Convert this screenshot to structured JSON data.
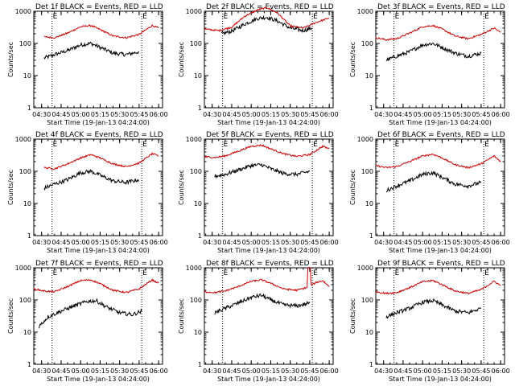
{
  "chart_data": [
    {
      "type": "line",
      "title": "Det 1f BLACK = Events, RED = LLD",
      "xlabel": "Start Time (19-Jan-13 04:24:00)",
      "ylabel": "Counts/sec",
      "yscale": "log",
      "ylim": [
        1,
        1000
      ],
      "xlim": [
        "04:24",
        "06:03"
      ],
      "x_tick_labels": [
        "04:30",
        "04:45",
        "05:00",
        "05:15",
        "05:30",
        "05:45",
        "06:00"
      ],
      "y_tick_labels": [
        "1",
        "10",
        "100",
        "1000"
      ],
      "vlines": [
        "04:38",
        "05:47"
      ],
      "markers": [
        "E",
        "E"
      ],
      "grid": false,
      "series": [
        {
          "name": "Events",
          "color": "#000000",
          "x": [
            "04:32",
            "04:40",
            "04:50",
            "05:00",
            "05:08",
            "05:15",
            "05:25",
            "05:35",
            "05:45"
          ],
          "values": [
            35,
            45,
            60,
            90,
            100,
            75,
            50,
            45,
            55
          ]
        },
        {
          "name": "LLD",
          "color": "#cc0000",
          "x": [
            "04:32",
            "04:40",
            "04:50",
            "05:00",
            "05:08",
            "05:15",
            "05:25",
            "05:35",
            "05:45",
            "05:55",
            "06:00"
          ],
          "values": [
            160,
            150,
            210,
            330,
            360,
            270,
            170,
            150,
            190,
            360,
            300
          ]
        }
      ]
    },
    {
      "type": "line",
      "title": "Det 2f BLACK = Events, RED = LLD",
      "xlabel": "Start Time (19-Jan-13 04:24:00)",
      "ylabel": "Counts/sec",
      "yscale": "log",
      "ylim": [
        1,
        1000
      ],
      "xlim": [
        "04:24",
        "06:03"
      ],
      "x_tick_labels": [
        "04:30",
        "04:45",
        "05:00",
        "05:15",
        "05:30",
        "05:45",
        "06:00"
      ],
      "y_tick_labels": [
        "1",
        "10",
        "100",
        "1000"
      ],
      "vlines": [
        "04:38",
        "05:47"
      ],
      "markers": [
        "E",
        "E"
      ],
      "grid": false,
      "series": [
        {
          "name": "Events",
          "color": "#000000",
          "x": [
            "04:37",
            "04:45",
            "04:55",
            "05:05",
            "05:12",
            "05:20",
            "05:30",
            "05:40",
            "05:47"
          ],
          "values": [
            200,
            240,
            400,
            600,
            650,
            500,
            300,
            250,
            300
          ]
        },
        {
          "name": "LLD",
          "color": "#cc0000",
          "x": [
            "04:24",
            "04:35",
            "04:45",
            "04:55",
            "05:05",
            "05:12",
            "05:20",
            "05:30",
            "05:40",
            "05:50",
            "06:00"
          ],
          "values": [
            280,
            250,
            320,
            700,
            1100,
            1300,
            900,
            350,
            300,
            450,
            620
          ]
        }
      ]
    },
    {
      "type": "line",
      "title": "Det 3f BLACK = Events, RED = LLD",
      "xlabel": "Start Time (19-Jan-13 04:24:00)",
      "ylabel": "Counts/sec",
      "yscale": "log",
      "ylim": [
        1,
        1000
      ],
      "xlim": [
        "04:24",
        "06:03"
      ],
      "x_tick_labels": [
        "04:30",
        "04:45",
        "05:00",
        "05:15",
        "05:30",
        "05:45",
        "06:00"
      ],
      "y_tick_labels": [
        "1",
        "10",
        "100",
        "1000"
      ],
      "vlines": [
        "04:38",
        "05:47"
      ],
      "markers": [
        "E",
        "E"
      ],
      "grid": false,
      "series": [
        {
          "name": "Events",
          "color": "#000000",
          "x": [
            "04:32",
            "04:40",
            "04:50",
            "05:00",
            "05:08",
            "05:15",
            "05:25",
            "05:35",
            "05:45"
          ],
          "values": [
            30,
            40,
            55,
            90,
            100,
            75,
            50,
            40,
            50
          ]
        },
        {
          "name": "LLD",
          "color": "#cc0000",
          "x": [
            "04:24",
            "04:32",
            "04:40",
            "04:50",
            "05:00",
            "05:08",
            "05:15",
            "05:25",
            "05:35",
            "05:45",
            "05:55",
            "06:00"
          ],
          "values": [
            150,
            130,
            140,
            210,
            330,
            360,
            280,
            170,
            140,
            190,
            300,
            220
          ]
        }
      ]
    },
    {
      "type": "line",
      "title": "Det 4f BLACK = Events, RED = LLD",
      "xlabel": "Start Time (19-Jan-13 04:24:00)",
      "ylabel": "Counts/sec",
      "yscale": "log",
      "ylim": [
        1,
        1000
      ],
      "xlim": [
        "04:24",
        "06:03"
      ],
      "x_tick_labels": [
        "04:30",
        "04:45",
        "05:00",
        "05:15",
        "05:30",
        "05:45",
        "06:00"
      ],
      "y_tick_labels": [
        "1",
        "10",
        "100",
        "1000"
      ],
      "vlines": [
        "04:38",
        "05:47"
      ],
      "markers": [
        "E",
        "E"
      ],
      "grid": false,
      "series": [
        {
          "name": "Events",
          "color": "#000000",
          "x": [
            "04:32",
            "04:40",
            "04:50",
            "05:00",
            "05:08",
            "05:15",
            "05:25",
            "05:35",
            "05:45"
          ],
          "values": [
            30,
            40,
            55,
            90,
            100,
            75,
            50,
            45,
            55
          ]
        },
        {
          "name": "LLD",
          "color": "#cc0000",
          "x": [
            "04:32",
            "04:40",
            "04:50",
            "05:00",
            "05:08",
            "05:15",
            "05:25",
            "05:35",
            "05:45",
            "05:55",
            "06:00"
          ],
          "values": [
            130,
            120,
            170,
            260,
            330,
            260,
            170,
            140,
            180,
            350,
            300
          ]
        }
      ]
    },
    {
      "type": "line",
      "title": "Det 5f BLACK = Events, RED = LLD",
      "xlabel": "Start Time (19-Jan-13 04:24:00)",
      "ylabel": "Counts/sec",
      "yscale": "log",
      "ylim": [
        1,
        1000
      ],
      "xlim": [
        "04:24",
        "06:03"
      ],
      "x_tick_labels": [
        "04:30",
        "04:45",
        "05:00",
        "05:15",
        "05:30",
        "05:45",
        "06:00"
      ],
      "y_tick_labels": [
        "1",
        "10",
        "100",
        "1000"
      ],
      "vlines": [
        "04:38",
        "05:47"
      ],
      "markers": [
        "E",
        "E"
      ],
      "grid": false,
      "series": [
        {
          "name": "Events",
          "color": "#000000",
          "x": [
            "04:32",
            "04:40",
            "04:50",
            "05:00",
            "05:08",
            "05:15",
            "05:25",
            "05:35",
            "05:45"
          ],
          "values": [
            70,
            80,
            110,
            150,
            160,
            120,
            85,
            80,
            100
          ]
        },
        {
          "name": "LLD",
          "color": "#cc0000",
          "x": [
            "04:24",
            "04:32",
            "04:40",
            "04:50",
            "05:00",
            "05:08",
            "05:15",
            "05:25",
            "05:35",
            "05:45",
            "05:55",
            "06:00"
          ],
          "values": [
            280,
            270,
            300,
            420,
            600,
            650,
            500,
            350,
            290,
            330,
            600,
            500
          ]
        }
      ]
    },
    {
      "type": "line",
      "title": "Det 6f BLACK = Events, RED = LLD",
      "xlabel": "Start Time (19-Jan-13 04:24:00)",
      "ylabel": "Counts/sec",
      "yscale": "log",
      "ylim": [
        1,
        1000
      ],
      "xlim": [
        "04:24",
        "06:03"
      ],
      "x_tick_labels": [
        "04:30",
        "04:45",
        "05:00",
        "05:15",
        "05:30",
        "05:45",
        "06:00"
      ],
      "y_tick_labels": [
        "1",
        "10",
        "100",
        "1000"
      ],
      "vlines": [
        "04:38",
        "05:47"
      ],
      "markers": [
        "E",
        "E"
      ],
      "grid": false,
      "series": [
        {
          "name": "Events",
          "color": "#000000",
          "x": [
            "04:32",
            "04:40",
            "04:50",
            "05:00",
            "05:08",
            "05:15",
            "05:25",
            "05:35",
            "05:45"
          ],
          "values": [
            25,
            35,
            50,
            80,
            90,
            65,
            40,
            35,
            45
          ]
        },
        {
          "name": "LLD",
          "color": "#cc0000",
          "x": [
            "04:24",
            "04:32",
            "04:40",
            "04:50",
            "05:00",
            "05:08",
            "05:15",
            "05:25",
            "05:35",
            "05:45",
            "05:55",
            "06:00"
          ],
          "values": [
            150,
            130,
            140,
            200,
            300,
            340,
            260,
            160,
            130,
            170,
            300,
            200
          ]
        }
      ]
    },
    {
      "type": "line",
      "title": "Det 7f BLACK = Events, RED = LLD",
      "xlabel": "Start Time (19-Jan-13 04:24:00)",
      "ylabel": "Counts/sec",
      "yscale": "log",
      "ylim": [
        1,
        1000
      ],
      "xlim": [
        "04:24",
        "06:03"
      ],
      "x_tick_labels": [
        "04:30",
        "04:45",
        "05:00",
        "05:15",
        "05:30",
        "05:45",
        "06:00"
      ],
      "y_tick_labels": [
        "1",
        "10",
        "100",
        "1000"
      ],
      "vlines": [
        "04:38",
        "05:47"
      ],
      "markers": [
        "E",
        "E"
      ],
      "grid": false,
      "series": [
        {
          "name": "Events",
          "color": "#000000",
          "x": [
            "04:28",
            "04:35",
            "04:45",
            "04:55",
            "05:05",
            "05:12",
            "05:20",
            "05:30",
            "05:40",
            "05:47"
          ],
          "values": [
            15,
            30,
            45,
            65,
            90,
            95,
            60,
            40,
            35,
            45
          ]
        },
        {
          "name": "LLD",
          "color": "#cc0000",
          "x": [
            "04:24",
            "04:32",
            "04:40",
            "04:50",
            "05:00",
            "05:08",
            "05:15",
            "05:25",
            "05:35",
            "05:45",
            "05:55",
            "06:00"
          ],
          "values": [
            220,
            190,
            180,
            260,
            400,
            420,
            320,
            200,
            170,
            220,
            420,
            330
          ]
        }
      ]
    },
    {
      "type": "line",
      "title": "Det 8f BLACK = Events, RED = LLD",
      "xlabel": "Start Time (19-Jan-13 04:24:00)",
      "ylabel": "Counts/sec",
      "yscale": "log",
      "ylim": [
        1,
        1000
      ],
      "xlim": [
        "04:24",
        "06:03"
      ],
      "x_tick_labels": [
        "04:30",
        "04:45",
        "05:00",
        "05:15",
        "05:30",
        "05:45",
        "06:00"
      ],
      "y_tick_labels": [
        "1",
        "10",
        "100",
        "1000"
      ],
      "vlines": [
        "04:38",
        "05:47"
      ],
      "markers": [
        "E",
        "E"
      ],
      "grid": false,
      "series": [
        {
          "name": "Events",
          "color": "#000000",
          "x": [
            "04:32",
            "04:40",
            "04:50",
            "05:00",
            "05:08",
            "05:15",
            "05:25",
            "05:35",
            "05:45"
          ],
          "values": [
            40,
            55,
            80,
            120,
            140,
            100,
            70,
            65,
            80
          ]
        },
        {
          "name": "LLD",
          "color": "#cc0000",
          "x": [
            "04:24",
            "04:32",
            "04:40",
            "04:50",
            "05:00",
            "05:08",
            "05:15",
            "05:25",
            "05:35",
            "05:42",
            "05:45",
            "05:47",
            "05:50",
            "05:55",
            "06:00"
          ],
          "values": [
            180,
            170,
            190,
            260,
            380,
            420,
            330,
            220,
            200,
            240,
            1000,
            300,
            350,
            400,
            260
          ]
        }
      ]
    },
    {
      "type": "line",
      "title": "Det 9f BLACK = Events, RED = LLD",
      "xlabel": "Start Time (19-Jan-13 04:24:00)",
      "ylabel": "Counts/sec",
      "yscale": "log",
      "ylim": [
        1,
        1000
      ],
      "xlim": [
        "04:24",
        "06:03"
      ],
      "x_tick_labels": [
        "04:30",
        "04:45",
        "05:00",
        "05:15",
        "05:30",
        "05:45",
        "06:00"
      ],
      "y_tick_labels": [
        "1",
        "10",
        "100",
        "1000"
      ],
      "vlines": [
        "04:38",
        "05:47"
      ],
      "markers": [
        "E",
        "E"
      ],
      "grid": false,
      "series": [
        {
          "name": "Events",
          "color": "#000000",
          "x": [
            "04:32",
            "04:40",
            "04:50",
            "05:00",
            "05:08",
            "05:15",
            "05:25",
            "05:35",
            "05:45"
          ],
          "values": [
            30,
            40,
            55,
            85,
            95,
            70,
            45,
            40,
            55
          ]
        },
        {
          "name": "LLD",
          "color": "#cc0000",
          "x": [
            "04:24",
            "04:32",
            "04:40",
            "04:50",
            "05:00",
            "05:08",
            "05:15",
            "05:25",
            "05:35",
            "05:45",
            "05:55",
            "06:00"
          ],
          "values": [
            180,
            160,
            170,
            240,
            370,
            400,
            300,
            190,
            160,
            210,
            380,
            280
          ]
        }
      ]
    }
  ]
}
